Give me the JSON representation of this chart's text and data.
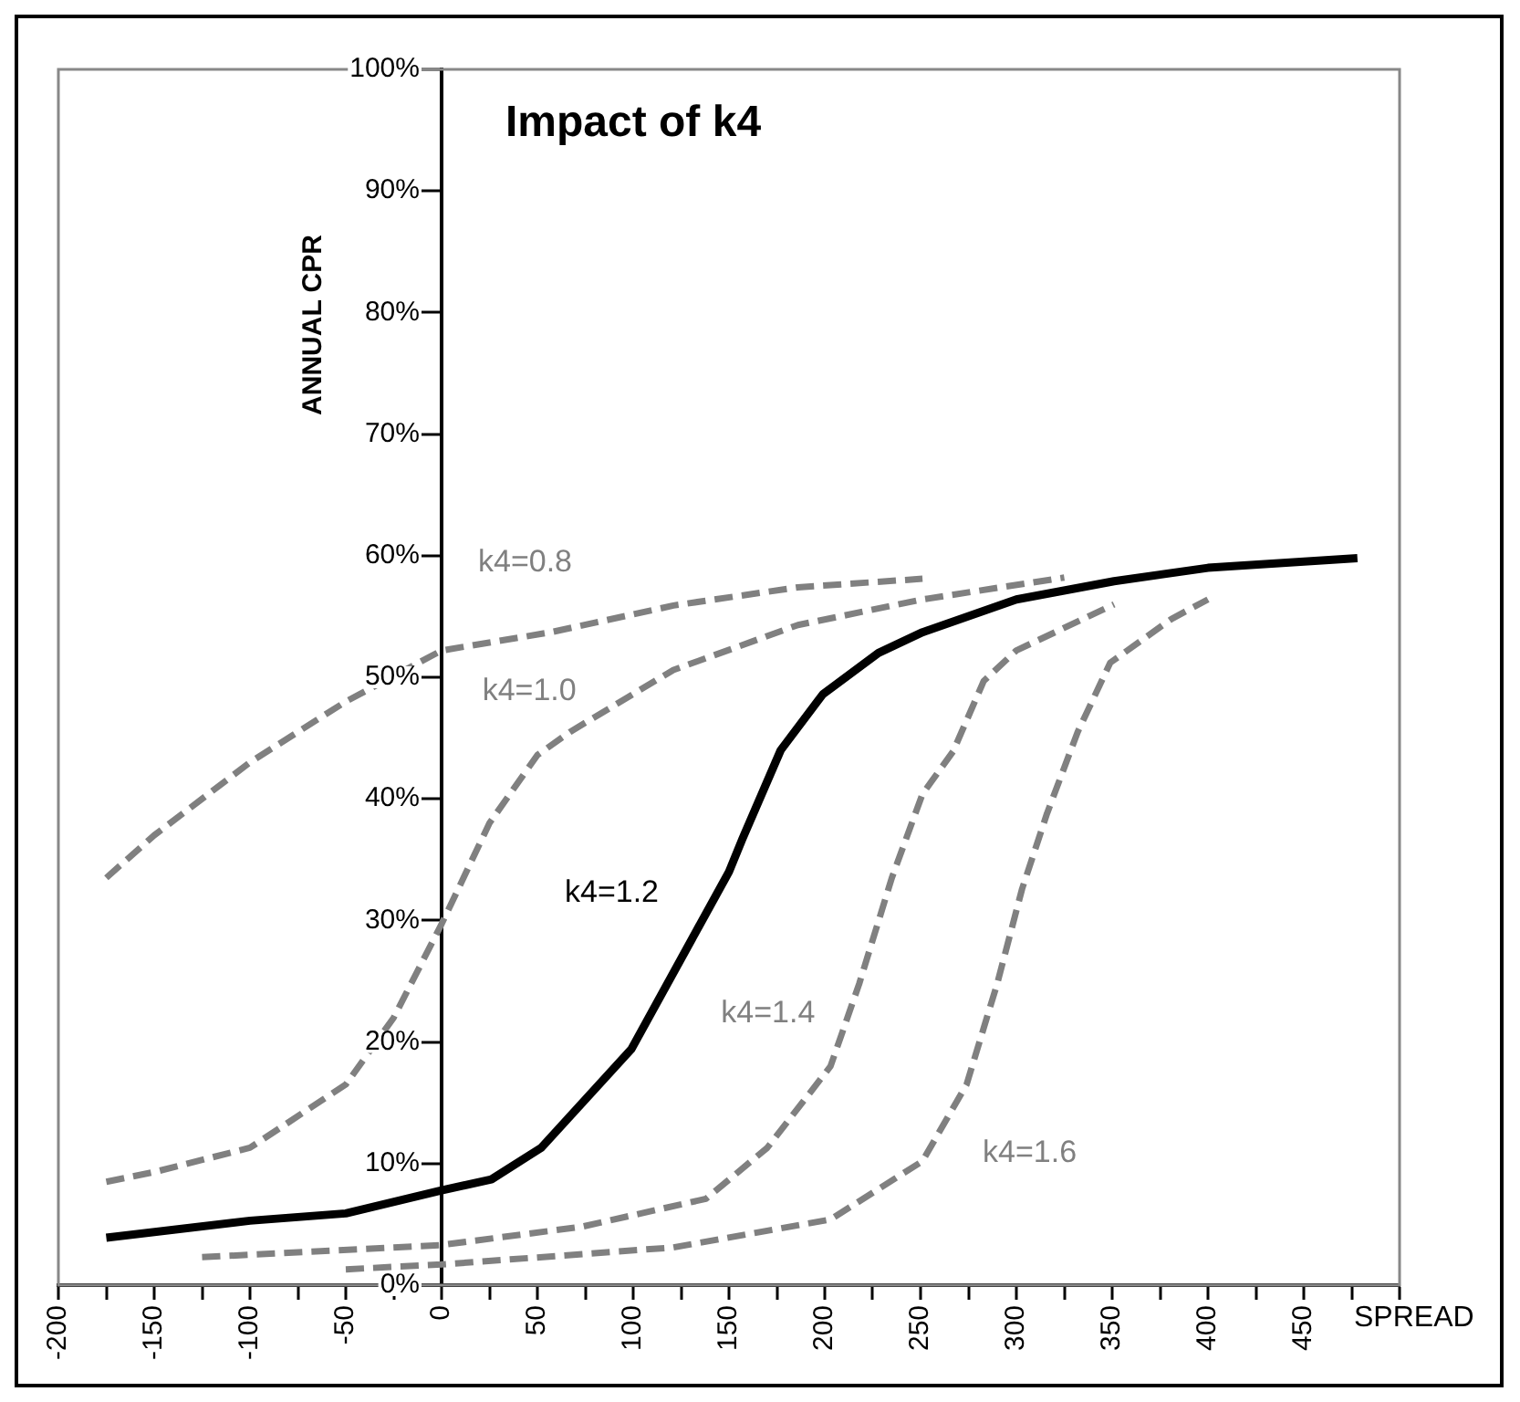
{
  "chart_data": {
    "type": "line",
    "title": "Impact of k4",
    "xlabel": "SPREAD",
    "ylabel": "ANNUAL CPR",
    "xlim": [
      -200,
      500
    ],
    "ylim": [
      0,
      100
    ],
    "xticks": [
      -200,
      {
        "value": -175,
        "label": null
      },
      -150,
      {
        "value": -125,
        "label": null
      },
      -100,
      {
        "value": -75,
        "label": null
      },
      -50,
      {
        "value": -25,
        "label": null
      },
      0,
      {
        "value": 25,
        "label": null
      },
      50,
      {
        "value": 75,
        "label": null
      },
      100,
      {
        "value": 125,
        "label": null
      },
      150,
      {
        "value": 175,
        "label": null
      },
      200,
      {
        "value": 225,
        "label": null
      },
      250,
      {
        "value": 275,
        "label": null
      },
      300,
      {
        "value": 325,
        "label": null
      },
      350,
      {
        "value": 375,
        "label": null
      },
      400,
      {
        "value": 425,
        "label": null
      },
      450,
      {
        "value": 475,
        "label": null
      },
      {
        "value": 500,
        "label": null
      }
    ],
    "yticks": [
      {
        "value": 0,
        "label": "0%"
      },
      {
        "value": 10,
        "label": "10%"
      },
      {
        "value": 20,
        "label": "20%"
      },
      {
        "value": 30,
        "label": "30%"
      },
      {
        "value": 40,
        "label": "40%"
      },
      {
        "value": 50,
        "label": "50%"
      },
      {
        "value": 60,
        "label": "60%"
      },
      {
        "value": 70,
        "label": "70%"
      },
      {
        "value": 80,
        "label": "80%"
      },
      {
        "value": 90,
        "label": "90%"
      },
      {
        "value": 100,
        "label": "100%"
      }
    ],
    "grid": false,
    "legend": false,
    "marker": "none",
    "series": [
      {
        "name": "k4=0.8",
        "color": "#808080",
        "line_style": "dashed",
        "x": [
          -175,
          -150,
          -100,
          -50,
          0,
          57,
          121,
          186,
          251
        ],
        "values": [
          33.5,
          37,
          43,
          48,
          52.2,
          53.7,
          55.9,
          57.4,
          58.1
        ]
      },
      {
        "name": "k4=1.0",
        "color": "#808080",
        "line_style": "dashed",
        "x": [
          -175,
          -150,
          -100,
          -50,
          -25,
          0,
          25,
          50,
          67,
          121,
          186,
          251,
          325
        ],
        "values": [
          8.5,
          9.3,
          11.3,
          16.5,
          22,
          29.7,
          38,
          43.6,
          45.5,
          50.6,
          54.3,
          56.4,
          58.2
        ]
      },
      {
        "name": "k4=1.2",
        "color": "#000000",
        "line_style": "solid",
        "x": [
          -175,
          -100,
          -50,
          0,
          26,
          52,
          99,
          150,
          157,
          177,
          199,
          228,
          251,
          300,
          351,
          400,
          478
        ],
        "values": [
          3.9,
          5.3,
          5.9,
          7.8,
          8.7,
          11.3,
          19.4,
          34,
          36.7,
          44,
          48.6,
          52,
          53.7,
          56.4,
          57.9,
          59,
          59.8
        ]
      },
      {
        "name": "k4=1.4",
        "color": "#808080",
        "line_style": "dashed",
        "x": [
          -125,
          0,
          73,
          138,
          170,
          203,
          218,
          235,
          251,
          267,
          283,
          300,
          351
        ],
        "values": [
          2.3,
          3.3,
          4.8,
          7.1,
          11.3,
          18,
          24.8,
          33.5,
          40.4,
          43.9,
          49.7,
          52.2,
          56
        ]
      },
      {
        "name": "k4=1.6",
        "color": "#808080",
        "line_style": "dashed",
        "x": [
          -50,
          0,
          121,
          203,
          251,
          274,
          290,
          303,
          316,
          332,
          349,
          381,
          400
        ],
        "values": [
          1.3,
          1.7,
          3.1,
          5.4,
          10.2,
          16.5,
          24.8,
          32.6,
          38.8,
          45.5,
          51.2,
          54.8,
          56.4
        ]
      }
    ]
  }
}
